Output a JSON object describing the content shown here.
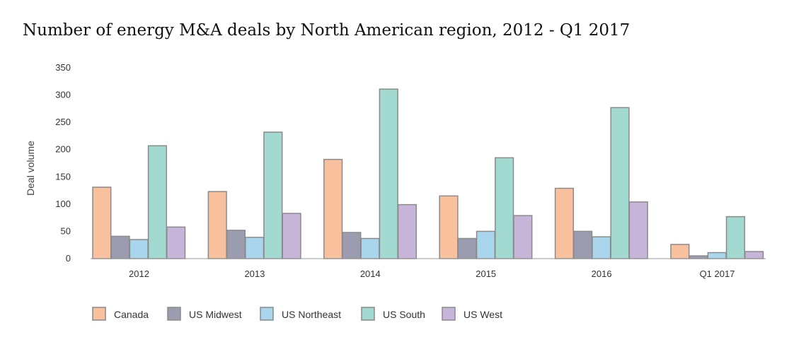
{
  "chart_data": {
    "type": "bar",
    "title": "Number of energy M&A deals by North American region, 2012 - Q1 2017",
    "xlabel": "",
    "ylabel": "Deal volume",
    "ylim": [
      0,
      350
    ],
    "yticks": [
      0,
      50,
      100,
      150,
      200,
      250,
      300,
      350
    ],
    "grid": false,
    "legend_position": "bottom-left",
    "categories": [
      "2012",
      "2013",
      "2014",
      "2015",
      "2016",
      "Q1 2017"
    ],
    "series": [
      {
        "name": "Canada",
        "color": "#f9c09e",
        "values": [
          131,
          123,
          182,
          115,
          129,
          26
        ]
      },
      {
        "name": "US Midwest",
        "color": "#9b9caf",
        "values": [
          41,
          52,
          48,
          37,
          50,
          5
        ]
      },
      {
        "name": "US Northeast",
        "color": "#a9d6ec",
        "values": [
          35,
          39,
          37,
          50,
          40,
          11
        ]
      },
      {
        "name": "US South",
        "color": "#a2dad1",
        "values": [
          207,
          232,
          311,
          185,
          277,
          77
        ]
      },
      {
        "name": "US West",
        "color": "#c7b4d9",
        "values": [
          58,
          83,
          99,
          79,
          104,
          13
        ]
      }
    ]
  }
}
